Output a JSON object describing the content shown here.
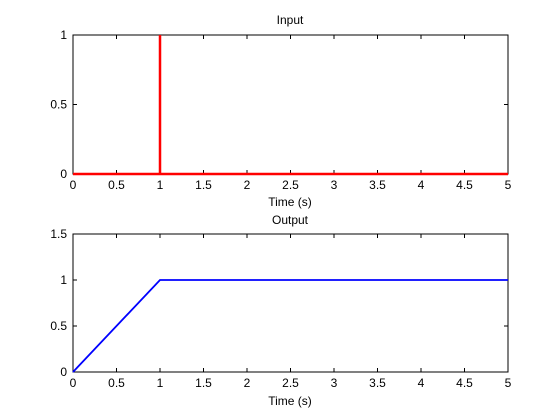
{
  "chart_data": [
    {
      "type": "line",
      "title": "Input",
      "xlabel": "Time (s)",
      "ylabel": "",
      "xlim": [
        0,
        5
      ],
      "ylim": [
        0,
        1
      ],
      "grid": false,
      "x_ticks": [
        "0",
        "0.5",
        "1",
        "1.5",
        "2",
        "2.5",
        "3",
        "3.5",
        "4",
        "4.5",
        "5"
      ],
      "y_ticks": [
        "0",
        "0.5",
        "1"
      ],
      "series": [
        {
          "color": "#ff0000",
          "x": [
            0,
            1,
            1,
            1,
            5
          ],
          "y": [
            0,
            0,
            1,
            0,
            0
          ]
        }
      ]
    },
    {
      "type": "line",
      "title": "Output",
      "xlabel": "Time (s)",
      "ylabel": "",
      "xlim": [
        0,
        5
      ],
      "ylim": [
        0,
        1.5
      ],
      "grid": false,
      "x_ticks": [
        "0",
        "0.5",
        "1",
        "1.5",
        "2",
        "2.5",
        "3",
        "3.5",
        "4",
        "4.5",
        "5"
      ],
      "y_ticks": [
        "0",
        "0.5",
        "1",
        "1.5"
      ],
      "series": [
        {
          "color": "#0000ff",
          "x": [
            0,
            1,
            5
          ],
          "y": [
            0,
            1,
            1
          ]
        }
      ]
    }
  ]
}
